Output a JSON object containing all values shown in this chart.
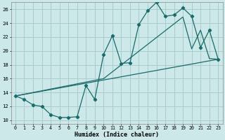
{
  "xlabel": "Humidex (Indice chaleur)",
  "xlim": [
    -0.5,
    23.5
  ],
  "ylim": [
    9.5,
    27.0
  ],
  "yticks": [
    10,
    12,
    14,
    16,
    18,
    20,
    22,
    24,
    26
  ],
  "xticks": [
    0,
    1,
    2,
    3,
    4,
    5,
    6,
    7,
    8,
    9,
    10,
    11,
    12,
    13,
    14,
    15,
    16,
    17,
    18,
    19,
    20,
    21,
    22,
    23
  ],
  "bg_color": "#cce8e8",
  "grid_color": "#aacccc",
  "line_color": "#1a6b6b",
  "line1_x": [
    0,
    1,
    2,
    3,
    4,
    5,
    6,
    7,
    8,
    9,
    10,
    11,
    12,
    13,
    14,
    15,
    16,
    17,
    18,
    19,
    20,
    21,
    22,
    23
  ],
  "line1_y": [
    13.5,
    13.0,
    12.2,
    12.0,
    10.8,
    10.4,
    10.4,
    10.5,
    15.0,
    13.0,
    19.5,
    22.2,
    18.2,
    18.3,
    23.8,
    25.8,
    27.0,
    25.0,
    25.2,
    26.2,
    25.0,
    20.5,
    23.0,
    18.8
  ],
  "line2_x": [
    0,
    23
  ],
  "line2_y": [
    13.5,
    18.8
  ],
  "line3_x": [
    0,
    10,
    19,
    20,
    21,
    22,
    23
  ],
  "line3_y": [
    13.5,
    16.0,
    24.9,
    20.3,
    23.0,
    18.9,
    18.8
  ]
}
